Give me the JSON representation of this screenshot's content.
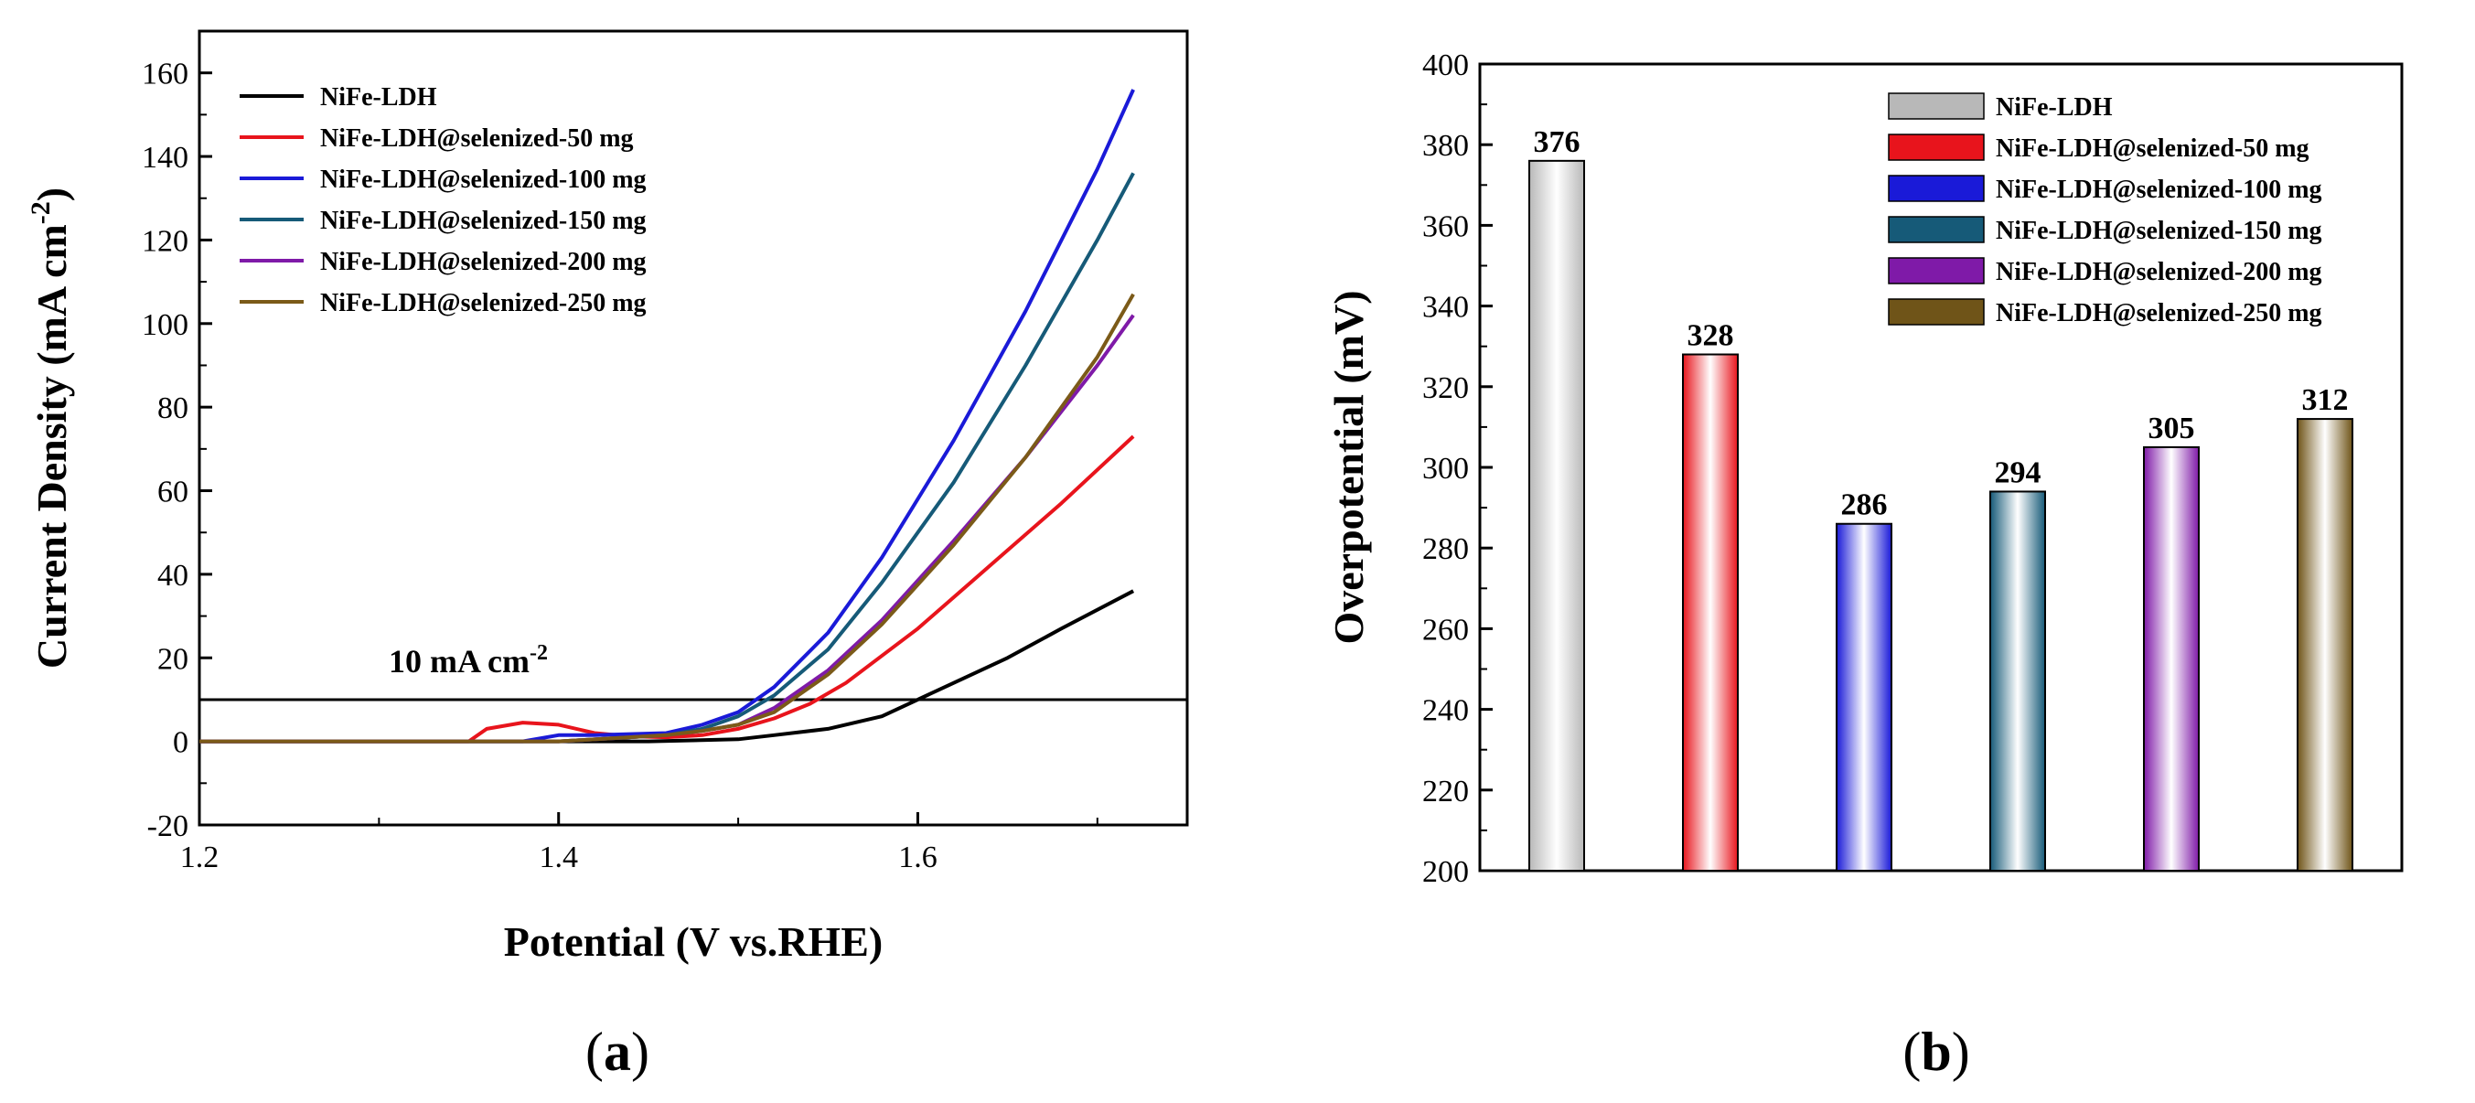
{
  "chart_data": [
    {
      "type": "line",
      "panel_label": "a",
      "xlabel": "Potential (V vs.RHE)",
      "ylabel": "Current Density (mA cm",
      "ylabel_sup": "-2",
      "ylabel_close": ")",
      "xlim": [
        1.2,
        1.75
      ],
      "ylim": [
        -20,
        170
      ],
      "xticks": [
        "1.2",
        "1.4",
        "1.6"
      ],
      "xtick_values": [
        1.2,
        1.4,
        1.6
      ],
      "yticks": [
        "-20",
        "0",
        "20",
        "40",
        "60",
        "80",
        "100",
        "120",
        "140",
        "160"
      ],
      "ytick_values": [
        -20,
        0,
        20,
        40,
        60,
        80,
        100,
        120,
        140,
        160
      ],
      "reference_line": {
        "y": 10,
        "label": "10 mA cm",
        "label_sup": "-2"
      },
      "series": [
        {
          "name": "NiFe-LDH",
          "color": "#000000",
          "x": [
            1.2,
            1.45,
            1.5,
            1.52,
            1.55,
            1.58,
            1.6,
            1.62,
            1.65,
            1.68,
            1.72
          ],
          "y": [
            0,
            0,
            0.5,
            1.5,
            3,
            6,
            10,
            14,
            20,
            27,
            36
          ]
        },
        {
          "name": "NiFe-LDH@selenized-50 mg",
          "color": "#e8141c",
          "x": [
            1.2,
            1.35,
            1.36,
            1.38,
            1.4,
            1.42,
            1.44,
            1.46,
            1.48,
            1.5,
            1.52,
            1.54,
            1.56,
            1.6,
            1.64,
            1.68,
            1.72
          ],
          "y": [
            0,
            0,
            3,
            4.5,
            4,
            2,
            1.2,
            1,
            1.5,
            3,
            5.5,
            9,
            14,
            27,
            42,
            57,
            73
          ]
        },
        {
          "name": "NiFe-LDH@selenized-100 mg",
          "color": "#1a1ad8",
          "x": [
            1.2,
            1.38,
            1.4,
            1.42,
            1.46,
            1.48,
            1.5,
            1.52,
            1.55,
            1.58,
            1.62,
            1.66,
            1.7,
            1.72
          ],
          "y": [
            0,
            0,
            1.5,
            1.5,
            2,
            4,
            7,
            13,
            26,
            44,
            72,
            103,
            137,
            156
          ]
        },
        {
          "name": "NiFe-LDH@selenized-150 mg",
          "color": "#165a78",
          "x": [
            1.2,
            1.4,
            1.46,
            1.48,
            1.5,
            1.52,
            1.55,
            1.58,
            1.62,
            1.66,
            1.7,
            1.72
          ],
          "y": [
            0,
            0,
            1.5,
            3,
            6,
            11,
            22,
            38,
            62,
            90,
            120,
            136
          ]
        },
        {
          "name": "NiFe-LDH@selenized-200 mg",
          "color": "#7f1aa8",
          "x": [
            1.2,
            1.4,
            1.46,
            1.48,
            1.5,
            1.52,
            1.55,
            1.58,
            1.62,
            1.66,
            1.7,
            1.72
          ],
          "y": [
            0,
            0,
            1.5,
            2.5,
            4,
            8,
            17,
            29,
            48,
            68,
            90,
            102
          ]
        },
        {
          "name": "NiFe-LDH@selenized-250 mg",
          "color": "#7b5a18",
          "x": [
            1.2,
            1.4,
            1.46,
            1.48,
            1.5,
            1.52,
            1.55,
            1.58,
            1.62,
            1.66,
            1.7,
            1.72
          ],
          "y": [
            0,
            0,
            1.5,
            2.5,
            4,
            7,
            16,
            28,
            47,
            68,
            92,
            107
          ]
        }
      ]
    },
    {
      "type": "bar",
      "panel_label": "b",
      "xlabel": "",
      "ylabel": "Overpotential (mV)",
      "ylim": [
        200,
        400
      ],
      "yticks": [
        "200",
        "220",
        "240",
        "260",
        "280",
        "300",
        "320",
        "340",
        "360",
        "380",
        "400"
      ],
      "ytick_values": [
        200,
        220,
        240,
        260,
        280,
        300,
        320,
        340,
        360,
        380,
        400
      ],
      "categories": [
        "NiFe-LDH",
        "NiFe-LDH@selenized-50 mg",
        "NiFe-LDH@selenized-100 mg",
        "NiFe-LDH@selenized-150 mg",
        "NiFe-LDH@selenized-200 mg",
        "NiFe-LDH@selenized-250 mg"
      ],
      "values": [
        376,
        328,
        286,
        294,
        305,
        312
      ],
      "value_labels": [
        "376",
        "328",
        "286",
        "294",
        "305",
        "312"
      ],
      "colors": [
        "#b8b8b8",
        "#e8141c",
        "#1a1ad8",
        "#165a78",
        "#7f1aa8",
        "#6f5418"
      ]
    }
  ]
}
